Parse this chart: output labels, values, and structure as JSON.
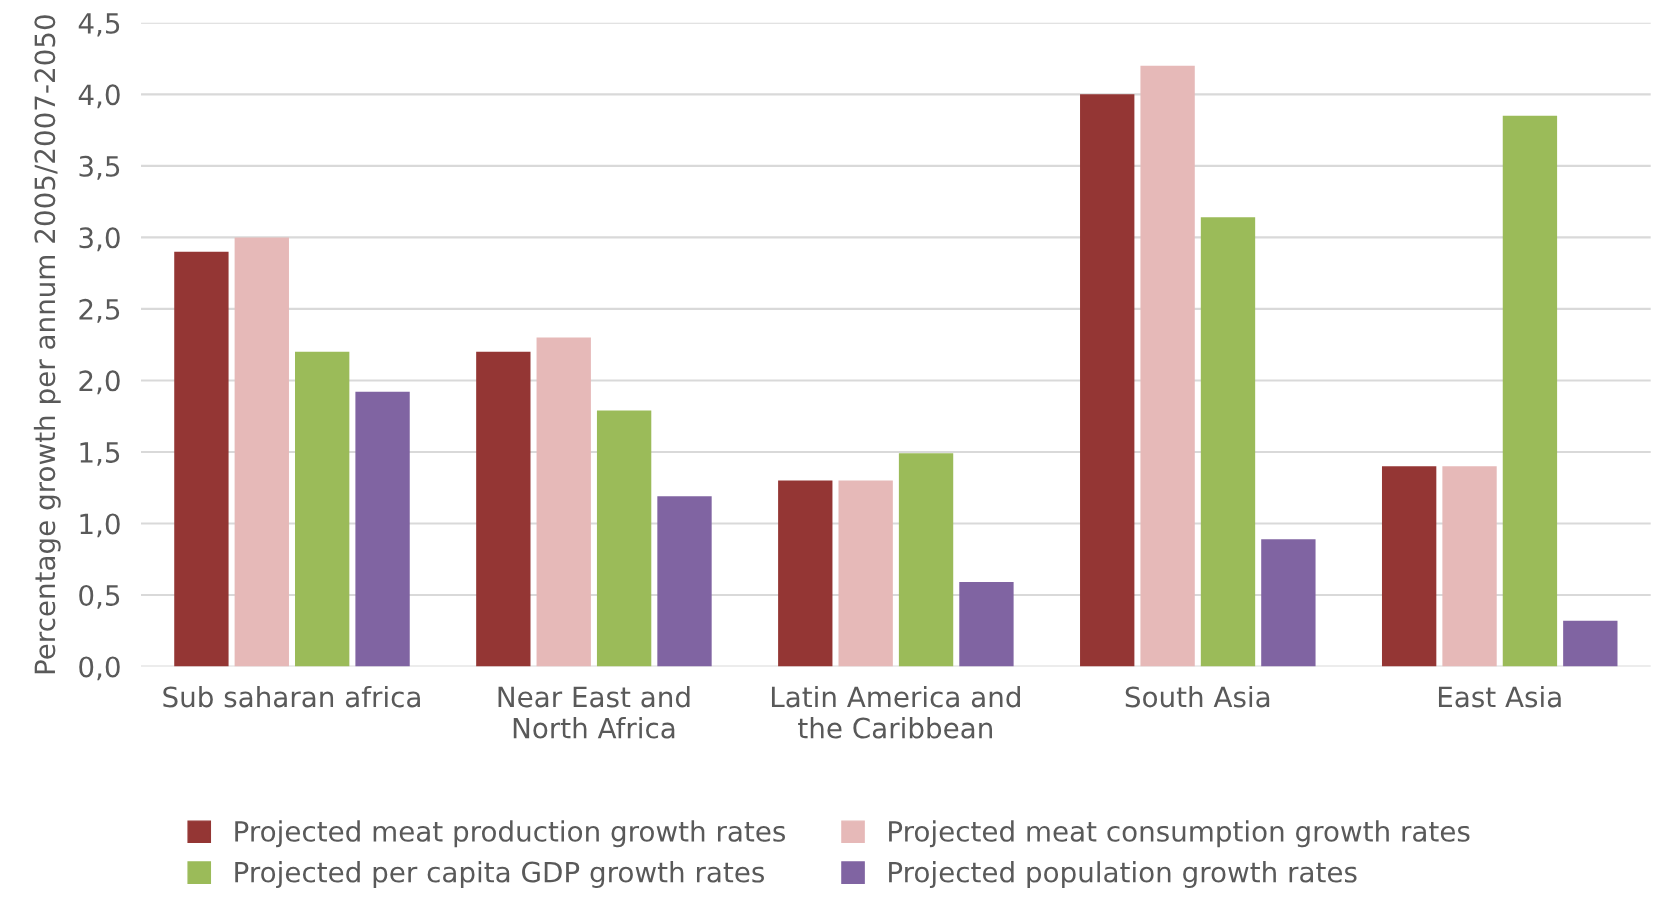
{
  "chart_data": {
    "type": "bar",
    "ylabel": "Percentage growth per annum 2005/2007-2050",
    "categories": [
      "Sub saharan africa",
      "Near East and\nNorth Africa",
      "Latin America and\nthe Caribbean",
      "South Asia",
      "East Asia"
    ],
    "series": [
      {
        "name": "Projected meat production growth rates",
        "color": "#943634",
        "values": [
          2.9,
          2.2,
          1.3,
          4.0,
          1.4
        ]
      },
      {
        "name": "Projected meat consumption growth rates",
        "color": "#e6b9b8",
        "values": [
          3.0,
          2.3,
          1.3,
          4.2,
          1.4
        ]
      },
      {
        "name": "Projected per capita GDP growth rates",
        "color": "#9bbb59",
        "values": [
          2.2,
          1.79,
          1.49,
          3.14,
          3.85
        ]
      },
      {
        "name": "Projected population growth rates",
        "color": "#8064a2",
        "values": [
          1.92,
          1.19,
          0.59,
          0.89,
          0.32
        ]
      }
    ],
    "ylim": [
      0,
      4.5
    ],
    "yticks": [
      {
        "value": 0,
        "label": "0,0"
      },
      {
        "value": 0.5,
        "label": "0,5"
      },
      {
        "value": 1.0,
        "label": "1,0"
      },
      {
        "value": 1.5,
        "label": "1,5"
      },
      {
        "value": 2.0,
        "label": "2,0"
      },
      {
        "value": 2.5,
        "label": "2,5"
      },
      {
        "value": 3.0,
        "label": "3,0"
      },
      {
        "value": 3.5,
        "label": "3,5"
      },
      {
        "value": 4.0,
        "label": "4,0"
      },
      {
        "value": 4.5,
        "label": "4,5"
      }
    ],
    "grid": "y",
    "legend": "bottom"
  }
}
